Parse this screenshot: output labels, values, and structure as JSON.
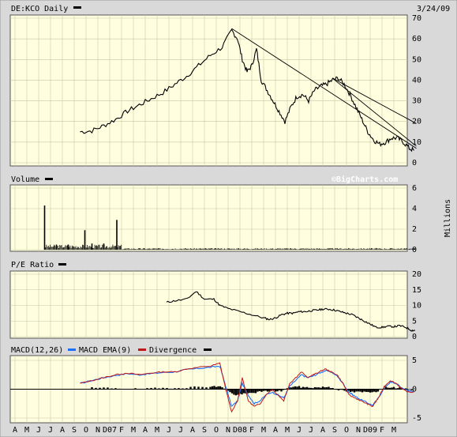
{
  "header": {
    "symbol_title": "DE:KCO Daily",
    "date": "3/24/09",
    "watermark": "©BigCharts.com"
  },
  "colors": {
    "panel_bg": "#ffffe0",
    "frame_bg": "#d9d9d9",
    "grid": "#c8c8a8",
    "price": "#000000",
    "macd": "#1a6fff",
    "ema": "#c01818",
    "divergence": "#000000"
  },
  "x_axis": {
    "labels": [
      "A",
      "M",
      "J",
      "J",
      "A",
      "S",
      "O",
      "N",
      "D07",
      "F",
      "M",
      "A",
      "M",
      "J",
      "J",
      "A",
      "S",
      "O",
      "N",
      "D08",
      "F",
      "M",
      "A",
      "M",
      "J",
      "J",
      "A",
      "S",
      "O",
      "N",
      "D09",
      "F",
      "M"
    ]
  },
  "panels": {
    "volume": {
      "title": "Volume",
      "unit": "Millions"
    },
    "pe": {
      "title": "P/E Ratio"
    },
    "macd": {
      "title": "MACD(12,26)",
      "ema_label": "MACD EMA(9)",
      "div_label": "Divergence"
    }
  },
  "chart_data": [
    {
      "type": "line",
      "title": "DE:KCO Daily",
      "ylim": [
        0,
        70
      ],
      "yticks": [
        0,
        10,
        20,
        30,
        40,
        50,
        60,
        70
      ],
      "x_range": [
        "2006-04",
        "2009-03"
      ],
      "series": [
        {
          "values": [
            [
              5.5,
              15
            ],
            [
              6.5,
              15.5
            ],
            [
              7.5,
              18
            ],
            [
              8.5,
              21
            ],
            [
              9.5,
              25
            ],
            [
              10.5,
              28
            ],
            [
              11.5,
              31
            ],
            [
              12.5,
              34
            ],
            [
              13.5,
              38
            ],
            [
              14.5,
              42
            ],
            [
              15.5,
              47
            ],
            [
              16.5,
              52
            ],
            [
              17.5,
              56
            ],
            [
              18.3,
              64
            ],
            [
              18.8,
              60
            ],
            [
              19.2,
              50
            ],
            [
              19.6,
              44
            ],
            [
              20.0,
              47
            ],
            [
              20.4,
              55
            ],
            [
              20.8,
              40
            ],
            [
              21.3,
              35
            ],
            [
              21.8,
              30
            ],
            [
              22.3,
              25
            ],
            [
              22.8,
              20
            ],
            [
              23.3,
              27
            ],
            [
              23.8,
              32
            ],
            [
              24.3,
              33
            ],
            [
              24.8,
              30
            ],
            [
              25.3,
              35
            ],
            [
              25.8,
              37
            ],
            [
              26.3,
              38
            ],
            [
              26.8,
              40
            ],
            [
              27.3,
              41
            ],
            [
              27.8,
              38
            ],
            [
              28.3,
              33
            ],
            [
              28.8,
              27
            ],
            [
              29.3,
              21
            ],
            [
              29.8,
              15
            ],
            [
              30.3,
              11
            ],
            [
              30.8,
              9
            ],
            [
              31.3,
              10
            ],
            [
              31.8,
              12
            ],
            [
              32.3,
              12
            ],
            [
              32.8,
              10
            ],
            [
              33.3,
              7
            ],
            [
              33.7,
              6
            ]
          ]
        }
      ],
      "trendlines": [
        [
          [
            18.3,
            65
          ],
          [
            33.9,
            7
          ]
        ],
        [
          [
            26.8,
            41
          ],
          [
            33.9,
            19
          ]
        ],
        [
          [
            26.8,
            41
          ],
          [
            33.9,
            8
          ]
        ]
      ]
    },
    {
      "type": "bar",
      "title": "Volume",
      "ylabel": "Millions",
      "ylim": [
        0,
        6
      ],
      "yticks": [
        0,
        2,
        4,
        6
      ],
      "spikes": [
        [
          2.5,
          4.3
        ],
        [
          5.9,
          1.9
        ],
        [
          8.6,
          2.9
        ],
        [
          3.5,
          0.5
        ],
        [
          4.5,
          0.5
        ],
        [
          6.5,
          0.6
        ],
        [
          7.5,
          0.6
        ]
      ]
    },
    {
      "type": "line",
      "title": "P/E Ratio",
      "ylim": [
        0,
        20
      ],
      "yticks": [
        0,
        5,
        10,
        15,
        20
      ],
      "series": [
        {
          "values": [
            [
              12.8,
              11
            ],
            [
              13.5,
              11.5
            ],
            [
              14.5,
              12
            ],
            [
              15.3,
              14.5
            ],
            [
              16,
              12
            ],
            [
              16.8,
              12
            ],
            [
              17.3,
              10
            ],
            [
              18,
              9
            ],
            [
              19,
              8
            ],
            [
              20,
              7
            ],
            [
              21,
              6
            ],
            [
              21.5,
              5.5
            ],
            [
              22,
              6
            ],
            [
              22.5,
              7
            ],
            [
              23,
              7.5
            ],
            [
              23.5,
              7.5
            ],
            [
              24,
              8
            ],
            [
              24.5,
              8
            ],
            [
              25,
              8.3
            ],
            [
              25.5,
              8.5
            ],
            [
              26,
              8.8
            ],
            [
              26.5,
              8.8
            ],
            [
              27,
              8.5
            ],
            [
              27.5,
              8
            ],
            [
              28,
              7.5
            ],
            [
              28.5,
              7
            ],
            [
              29,
              6
            ],
            [
              29.5,
              5
            ],
            [
              30,
              4
            ],
            [
              30.5,
              3
            ],
            [
              31,
              3
            ],
            [
              31.5,
              3.3
            ],
            [
              32,
              3.2
            ],
            [
              32.5,
              3.5
            ],
            [
              33,
              3
            ],
            [
              33.5,
              2
            ],
            [
              33.8,
              2
            ]
          ]
        }
      ]
    },
    {
      "type": "line",
      "title": "MACD(12,26)",
      "ylim": [
        -5,
        5
      ],
      "yticks": [
        -5,
        0,
        5
      ],
      "series": [
        {
          "name": "MACD EMA(9)",
          "values": [
            [
              5.5,
              1
            ],
            [
              6.5,
              1.5
            ],
            [
              7.5,
              2
            ],
            [
              8.5,
              2.5
            ],
            [
              9.5,
              2.8
            ],
            [
              10.5,
              2.5
            ],
            [
              11.5,
              2.8
            ],
            [
              12.5,
              3
            ],
            [
              13.5,
              3
            ],
            [
              14.5,
              3.5
            ],
            [
              15.5,
              3.8
            ],
            [
              16.5,
              4
            ],
            [
              17.3,
              4.5
            ],
            [
              17.8,
              0
            ],
            [
              18.3,
              -4
            ],
            [
              18.8,
              -2
            ],
            [
              19.2,
              2
            ],
            [
              19.7,
              -2
            ],
            [
              20.2,
              -3
            ],
            [
              20.7,
              -2.5
            ],
            [
              21.2,
              -1
            ],
            [
              21.7,
              0
            ],
            [
              22.2,
              -1
            ],
            [
              22.7,
              -2
            ],
            [
              23.2,
              1
            ],
            [
              23.7,
              2
            ],
            [
              24.2,
              3
            ],
            [
              24.7,
              2
            ],
            [
              25.2,
              2.5
            ],
            [
              25.7,
              3
            ],
            [
              26.2,
              3.5
            ],
            [
              26.7,
              3
            ],
            [
              27.2,
              2.5
            ],
            [
              27.7,
              1
            ],
            [
              28.2,
              -1
            ],
            [
              28.7,
              -1.5
            ],
            [
              29.2,
              -2
            ],
            [
              29.7,
              -2.5
            ],
            [
              30.2,
              -3
            ],
            [
              30.7,
              -1.5
            ],
            [
              31.2,
              0.5
            ],
            [
              31.7,
              1.5
            ],
            [
              32.2,
              1
            ],
            [
              32.7,
              0
            ],
            [
              33.2,
              -0.5
            ],
            [
              33.7,
              -0.5
            ]
          ]
        },
        {
          "name": "MACD(12,26)",
          "values": [
            [
              5.5,
              1
            ],
            [
              6.5,
              1.5
            ],
            [
              7.5,
              2
            ],
            [
              8.5,
              2.4
            ],
            [
              9.5,
              2.7
            ],
            [
              10.5,
              2.5
            ],
            [
              11.5,
              2.7
            ],
            [
              12.5,
              2.9
            ],
            [
              13.5,
              3
            ],
            [
              14.5,
              3.4
            ],
            [
              15.5,
              3.6
            ],
            [
              16.5,
              3.8
            ],
            [
              17.3,
              4
            ],
            [
              17.8,
              0.5
            ],
            [
              18.3,
              -3
            ],
            [
              18.8,
              -2
            ],
            [
              19.2,
              1
            ],
            [
              19.7,
              -1
            ],
            [
              20.2,
              -2.5
            ],
            [
              20.7,
              -2
            ],
            [
              21.2,
              -1
            ],
            [
              21.7,
              -0.5
            ],
            [
              22.2,
              -1
            ],
            [
              22.7,
              -1.5
            ],
            [
              23.2,
              0.5
            ],
            [
              23.7,
              1.5
            ],
            [
              24.2,
              2.5
            ],
            [
              24.7,
              2
            ],
            [
              25.2,
              2.3
            ],
            [
              25.7,
              2.8
            ],
            [
              26.2,
              3.2
            ],
            [
              26.7,
              3
            ],
            [
              27.2,
              2.3
            ],
            [
              27.7,
              1
            ],
            [
              28.2,
              -0.5
            ],
            [
              28.7,
              -1.2
            ],
            [
              29.2,
              -1.8
            ],
            [
              29.7,
              -2.3
            ],
            [
              30.2,
              -2.8
            ],
            [
              30.7,
              -1.5
            ],
            [
              31.2,
              0.3
            ],
            [
              31.7,
              1.2
            ],
            [
              32.2,
              1
            ],
            [
              32.7,
              0.2
            ],
            [
              33.2,
              -0.3
            ],
            [
              33.7,
              -0.3
            ]
          ]
        }
      ],
      "divergence": [
        [
          6.5,
          0.2
        ],
        [
          8.5,
          0.2
        ],
        [
          10.5,
          0
        ],
        [
          12.5,
          0.2
        ],
        [
          14.5,
          0.3
        ],
        [
          16.5,
          0.5
        ],
        [
          17.5,
          0.4
        ],
        [
          18.5,
          -1
        ],
        [
          19.5,
          -0.8
        ],
        [
          20.5,
          -0.5
        ],
        [
          21.5,
          -0.3
        ],
        [
          22.5,
          -0.3
        ],
        [
          23.5,
          0.5
        ],
        [
          24.5,
          0.3
        ],
        [
          25.5,
          0.3
        ],
        [
          26.5,
          0.4
        ],
        [
          27.5,
          -0.2
        ],
        [
          28.5,
          -0.5
        ],
        [
          29.5,
          -0.5
        ],
        [
          30.5,
          -0.4
        ],
        [
          31.5,
          0.4
        ],
        [
          32.5,
          0.2
        ],
        [
          33.5,
          -0.2
        ]
      ]
    }
  ]
}
